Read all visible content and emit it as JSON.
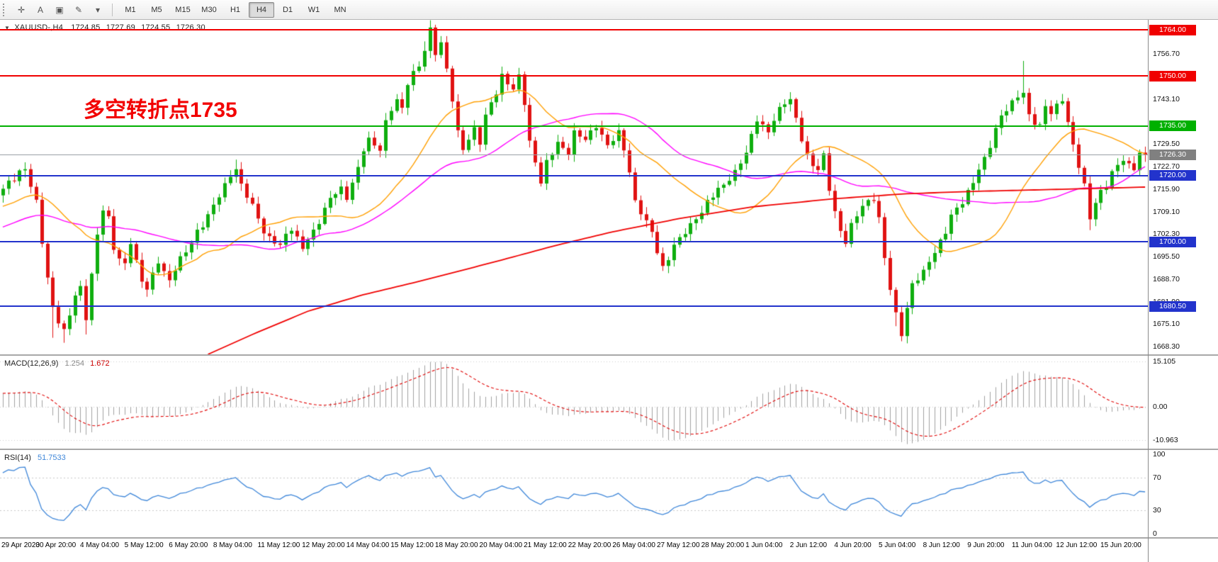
{
  "toolbar": {
    "tools": [
      {
        "name": "crosshair-icon",
        "glyph": "✛"
      },
      {
        "name": "text-label-icon",
        "glyph": "A"
      },
      {
        "name": "text-frame-icon",
        "glyph": "▣"
      },
      {
        "name": "draw-icon",
        "glyph": "✎"
      },
      {
        "name": "draw-menu-chevron-icon",
        "glyph": "▾"
      }
    ],
    "timeframes": [
      "M1",
      "M5",
      "M15",
      "M30",
      "H1",
      "H4",
      "D1",
      "W1",
      "MN"
    ],
    "active_timeframe": "H4"
  },
  "symbol_bar": {
    "marker": "▼",
    "symbol": "XAUUSD-,H4",
    "open": "1724.85",
    "high": "1727.69",
    "low": "1724.55",
    "close": "1726.30"
  },
  "annotation": {
    "text": "多空转折点1735",
    "color": "#f20000"
  },
  "indicators": {
    "macd": {
      "label": "MACD(12,26,9)",
      "value_main": "1.254",
      "value_signal": "1.672",
      "scale_labels": [
        {
          "text": "15.105",
          "value": 15.105
        },
        {
          "text": "0.00",
          "value": 0
        },
        {
          "text": "-10.963",
          "value": -10.963
        }
      ]
    },
    "rsi": {
      "label": "RSI(14)",
      "value": "51.7533",
      "scale_labels": [
        {
          "text": "100",
          "value": 100
        },
        {
          "text": "70",
          "value": 70
        },
        {
          "text": "30",
          "value": 30
        },
        {
          "text": "0",
          "value": 0
        }
      ],
      "levels": [
        70,
        30
      ]
    }
  },
  "price_axis": {
    "ticks": [
      {
        "text": "1756.70",
        "value": 1756.7
      },
      {
        "text": "1743.10",
        "value": 1743.1
      },
      {
        "text": "1729.50",
        "value": 1729.5
      },
      {
        "text": "1722.70",
        "value": 1722.7
      },
      {
        "text": "1715.90",
        "value": 1715.9
      },
      {
        "text": "1709.10",
        "value": 1709.1
      },
      {
        "text": "1702.30",
        "value": 1702.3
      },
      {
        "text": "1695.50",
        "value": 1695.5
      },
      {
        "text": "1688.70",
        "value": 1688.7
      },
      {
        "text": "1681.90",
        "value": 1681.9
      },
      {
        "text": "1675.10",
        "value": 1675.1
      },
      {
        "text": "1668.30",
        "value": 1668.3
      }
    ],
    "badges": [
      {
        "text": "1764.00",
        "value": 1764.0,
        "color": "#f00000"
      },
      {
        "text": "1750.00",
        "value": 1750.0,
        "color": "#f00000"
      },
      {
        "text": "1735.00",
        "value": 1735.0,
        "color": "#00b000"
      },
      {
        "text": "1726.30",
        "value": 1726.3,
        "color": "#808080"
      },
      {
        "text": "1720.00",
        "value": 1720.0,
        "color": "#2233cc"
      },
      {
        "text": "1700.00",
        "value": 1700.0,
        "color": "#2233cc"
      },
      {
        "text": "1680.50",
        "value": 1680.5,
        "color": "#2233cc"
      }
    ]
  },
  "time_axis": {
    "labels": [
      "29 Apr 2020",
      "30 Apr 20:00",
      "4 May 04:00",
      "5 May 12:00",
      "6 May 20:00",
      "8 May 04:00",
      "11 May 12:00",
      "12 May 20:00",
      "14 May 04:00",
      "15 May 12:00",
      "18 May 20:00",
      "20 May 04:00",
      "21 May 12:00",
      "22 May 20:00",
      "26 May 04:00",
      "27 May 12:00",
      "28 May 20:00",
      "1 Jun 04:00",
      "2 Jun 12:00",
      "4 Jun 20:00",
      "5 Jun 04:00",
      "8 Jun 12:00",
      "9 Jun 20:00",
      "11 Jun 04:00",
      "12 Jun 12:00",
      "15 Jun 20:00"
    ]
  },
  "chart_data": {
    "type": "candlestick",
    "title": "XAUUSD-,H4",
    "timeframe": "H4",
    "ohlc_last": {
      "open": 1724.85,
      "high": 1727.69,
      "low": 1724.55,
      "close": 1726.3
    },
    "y_range": [
      1666,
      1767
    ],
    "closes": [
      1716,
      1718,
      1719,
      1721,
      1722,
      1717,
      1712,
      1700,
      1689,
      1680,
      1676,
      1673,
      1678,
      1684,
      1686,
      1677,
      1690,
      1702,
      1710,
      1707,
      1698,
      1695,
      1693,
      1700,
      1694,
      1688,
      1686,
      1690,
      1694,
      1691,
      1688,
      1692,
      1695,
      1697,
      1700,
      1703,
      1705,
      1708,
      1711,
      1714,
      1717,
      1720,
      1722,
      1717,
      1714,
      1711,
      1707,
      1703,
      1701,
      1700,
      1699,
      1702,
      1704,
      1701,
      1698,
      1701,
      1703,
      1706,
      1710,
      1713,
      1715,
      1716,
      1713,
      1718,
      1722,
      1728,
      1731,
      1729,
      1728,
      1736,
      1740,
      1743,
      1740,
      1748,
      1751,
      1753,
      1758,
      1764,
      1757,
      1760,
      1752,
      1743,
      1733,
      1728,
      1731,
      1734,
      1730,
      1738,
      1742,
      1745,
      1750,
      1748,
      1746,
      1750,
      1742,
      1730,
      1724,
      1718,
      1724,
      1727,
      1730,
      1728,
      1727,
      1733,
      1732,
      1731,
      1733,
      1735,
      1732,
      1729,
      1731,
      1733,
      1728,
      1721,
      1712,
      1709,
      1706,
      1703,
      1697,
      1692,
      1695,
      1699,
      1701,
      1703,
      1705,
      1707,
      1709,
      1712,
      1714,
      1716,
      1717,
      1719,
      1721,
      1724,
      1727,
      1732,
      1737,
      1735,
      1733,
      1737,
      1740,
      1742,
      1743,
      1737,
      1731,
      1726,
      1723,
      1722,
      1726,
      1716,
      1709,
      1703,
      1700,
      1705,
      1708,
      1711,
      1712,
      1713,
      1707,
      1695,
      1686,
      1678,
      1672,
      1680,
      1687,
      1689,
      1691,
      1694,
      1697,
      1700,
      1703,
      1708,
      1710,
      1712,
      1715,
      1718,
      1722,
      1725,
      1729,
      1734,
      1738,
      1740,
      1742,
      1744,
      1745,
      1738,
      1736,
      1735,
      1741,
      1739,
      1741,
      1743,
      1736,
      1729,
      1723,
      1717,
      1707,
      1712,
      1715,
      1717,
      1721,
      1723,
      1725,
      1723,
      1722,
      1727,
      1726.3
    ],
    "prehistory": {
      "start": 1687,
      "end": 1716,
      "count": 50
    },
    "spikes": [
      {
        "i": 9,
        "low": 1671
      },
      {
        "i": 11,
        "low": 1669.5
      },
      {
        "i": 15,
        "low": 1672
      },
      {
        "i": 42,
        "high": 1724.8
      },
      {
        "i": 76,
        "high": 1760.5
      },
      {
        "i": 77,
        "high": 1765.4
      },
      {
        "i": 93,
        "high": 1752.5
      },
      {
        "i": 161,
        "low": 1674.5
      },
      {
        "i": 162,
        "low": 1670.5
      },
      {
        "i": 184,
        "high": 1754.6
      },
      {
        "i": 196,
        "low": 1703.5
      }
    ],
    "hlines": [
      {
        "value": 1764.0,
        "color": "#f00000",
        "width": 2
      },
      {
        "value": 1750.0,
        "color": "#f00000",
        "width": 2
      },
      {
        "value": 1735.0,
        "color": "#00b000",
        "width": 2
      },
      {
        "value": 1726.3,
        "color": "#9aa0a6",
        "width": 1
      },
      {
        "value": 1720.0,
        "color": "#2233cc",
        "width": 2
      },
      {
        "value": 1700.0,
        "color": "#2233cc",
        "width": 2
      },
      {
        "value": 1680.5,
        "color": "#2233cc",
        "width": 2
      }
    ],
    "moving_averages": {
      "fast": {
        "period": 21,
        "color": "#ff9f00"
      },
      "mid": {
        "period": 42,
        "color": "#ff00ff"
      },
      "slow": {
        "color": "#f00000",
        "anchors": [
          [
            37,
            1666
          ],
          [
            45,
            1672
          ],
          [
            55,
            1679
          ],
          [
            65,
            1684
          ],
          [
            75,
            1688
          ],
          [
            82,
            1691
          ],
          [
            90,
            1694.5
          ],
          [
            100,
            1699
          ],
          [
            110,
            1703
          ],
          [
            122,
            1707
          ],
          [
            135,
            1710.5
          ],
          [
            150,
            1713
          ],
          [
            163,
            1714.5
          ],
          [
            175,
            1715.2
          ],
          [
            190,
            1715.8
          ],
          [
            206,
            1716.5
          ]
        ]
      }
    },
    "macd": {
      "fast": 12,
      "slow": 26,
      "signal": 9,
      "pos_max": 15.105,
      "neg_min": -12.3,
      "hist_color": "#a0a0a0",
      "signal_color": "#e00000"
    },
    "rsi": {
      "period": 14,
      "color": "#3f87d9"
    },
    "candle_colors": {
      "up": "#0fae0f",
      "down": "#e01212"
    }
  }
}
